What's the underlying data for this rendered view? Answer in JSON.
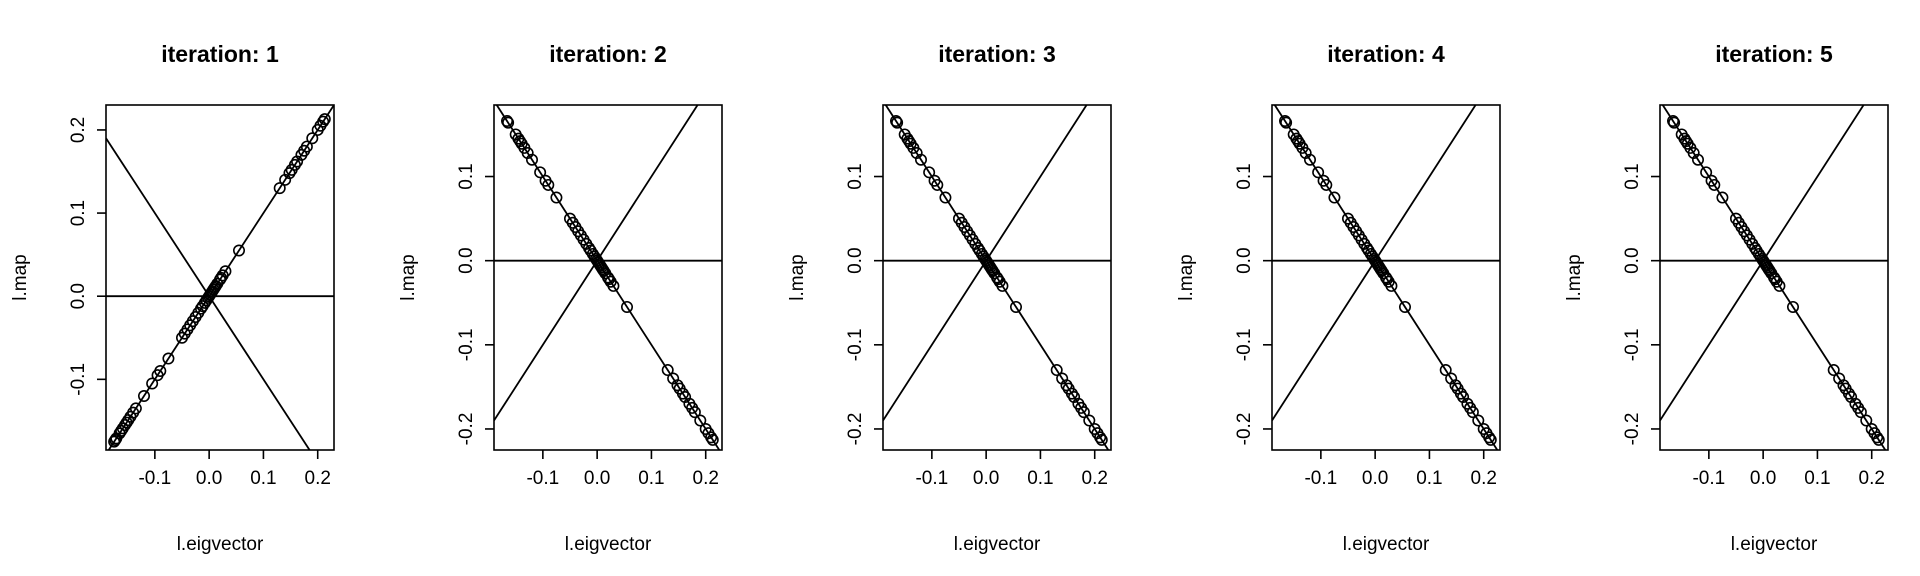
{
  "chart_data": [
    {
      "type": "scatter",
      "title": "iteration: 1",
      "xlabel": "l.eigvector",
      "ylabel": "l.map",
      "xlim": [
        -0.19,
        0.23
      ],
      "ylim": [
        -0.185,
        0.23
      ],
      "xticks": [
        {
          "v": -0.1,
          "label": "-0.1"
        },
        {
          "v": 0.0,
          "label": "0.0"
        },
        {
          "v": 0.1,
          "label": "0.1"
        },
        {
          "v": 0.2,
          "label": "0.2"
        }
      ],
      "yticks": [
        {
          "v": -0.1,
          "label": "-0.1"
        },
        {
          "v": 0.0,
          "label": "0.0"
        },
        {
          "v": 0.1,
          "label": "0.1"
        },
        {
          "v": 0.2,
          "label": "0.2"
        }
      ],
      "lines": [
        {
          "slope": 0,
          "intercept": 0
        },
        {
          "slope": 1,
          "intercept": 0
        },
        {
          "slope": -1,
          "intercept": 0
        }
      ],
      "points": {
        "sign": 1,
        "x": [
          -0.175,
          -0.173,
          -0.171,
          -0.165,
          -0.162,
          -0.159,
          -0.155,
          -0.152,
          -0.149,
          -0.145,
          -0.14,
          -0.135,
          -0.12,
          -0.105,
          -0.095,
          -0.09,
          -0.075,
          -0.05,
          -0.045,
          -0.04,
          -0.035,
          -0.03,
          -0.025,
          -0.02,
          -0.015,
          -0.012,
          -0.008,
          -0.005,
          -0.002,
          0.0,
          0.002,
          0.004,
          0.006,
          0.008,
          0.01,
          0.012,
          0.015,
          0.02,
          0.022,
          0.025,
          0.03,
          0.055,
          0.13,
          0.14,
          0.148,
          0.152,
          0.158,
          0.162,
          0.17,
          0.175,
          0.18,
          0.19,
          0.2,
          0.205,
          0.21,
          0.213
        ]
      }
    },
    {
      "type": "scatter",
      "title": "iteration: 2",
      "xlabel": "l.eigvector",
      "ylabel": "l.map",
      "xlim": [
        -0.19,
        0.23
      ],
      "ylim": [
        -0.225,
        0.185
      ],
      "xticks": [
        {
          "v": -0.1,
          "label": "-0.1"
        },
        {
          "v": 0.0,
          "label": "0.0"
        },
        {
          "v": 0.1,
          "label": "0.1"
        },
        {
          "v": 0.2,
          "label": "0.2"
        }
      ],
      "yticks": [
        {
          "v": -0.2,
          "label": "-0.2"
        },
        {
          "v": -0.1,
          "label": "-0.1"
        },
        {
          "v": 0.0,
          "label": "0.0"
        },
        {
          "v": 0.1,
          "label": "0.1"
        }
      ],
      "lines": [
        {
          "slope": 0,
          "intercept": 0
        },
        {
          "slope": 1,
          "intercept": 0
        },
        {
          "slope": -1,
          "intercept": 0
        }
      ],
      "points": {
        "sign": -1,
        "x": [
          -0.166,
          -0.164,
          -0.15,
          -0.145,
          -0.142,
          -0.139,
          -0.134,
          -0.128,
          -0.12,
          -0.105,
          -0.095,
          -0.09,
          -0.075,
          -0.05,
          -0.045,
          -0.04,
          -0.035,
          -0.03,
          -0.025,
          -0.02,
          -0.015,
          -0.012,
          -0.008,
          -0.005,
          -0.002,
          0.0,
          0.002,
          0.004,
          0.006,
          0.008,
          0.01,
          0.012,
          0.015,
          0.02,
          0.022,
          0.025,
          0.03,
          0.055,
          0.13,
          0.14,
          0.148,
          0.152,
          0.158,
          0.162,
          0.17,
          0.175,
          0.18,
          0.19,
          0.2,
          0.205,
          0.21,
          0.213
        ]
      }
    },
    {
      "type": "scatter",
      "title": "iteration: 3",
      "xlabel": "l.eigvector",
      "ylabel": "l.map",
      "xlim": [
        -0.19,
        0.23
      ],
      "ylim": [
        -0.225,
        0.185
      ],
      "xticks": [
        {
          "v": -0.1,
          "label": "-0.1"
        },
        {
          "v": 0.0,
          "label": "0.0"
        },
        {
          "v": 0.1,
          "label": "0.1"
        },
        {
          "v": 0.2,
          "label": "0.2"
        }
      ],
      "yticks": [
        {
          "v": -0.2,
          "label": "-0.2"
        },
        {
          "v": -0.1,
          "label": "-0.1"
        },
        {
          "v": 0.0,
          "label": "0.0"
        },
        {
          "v": 0.1,
          "label": "0.1"
        }
      ],
      "lines": [
        {
          "slope": 0,
          "intercept": 0
        },
        {
          "slope": 1,
          "intercept": 0
        },
        {
          "slope": -1,
          "intercept": 0
        }
      ],
      "points": {
        "sign": -1,
        "x": [
          -0.166,
          -0.164,
          -0.15,
          -0.145,
          -0.142,
          -0.139,
          -0.134,
          -0.128,
          -0.12,
          -0.105,
          -0.095,
          -0.09,
          -0.075,
          -0.05,
          -0.045,
          -0.04,
          -0.035,
          -0.03,
          -0.025,
          -0.02,
          -0.015,
          -0.012,
          -0.008,
          -0.005,
          -0.002,
          0.0,
          0.002,
          0.004,
          0.006,
          0.008,
          0.01,
          0.012,
          0.015,
          0.02,
          0.022,
          0.025,
          0.03,
          0.055,
          0.13,
          0.14,
          0.148,
          0.152,
          0.158,
          0.162,
          0.17,
          0.175,
          0.18,
          0.19,
          0.2,
          0.205,
          0.21,
          0.213
        ]
      }
    },
    {
      "type": "scatter",
      "title": "iteration: 4",
      "xlabel": "l.eigvector",
      "ylabel": "l.map",
      "xlim": [
        -0.19,
        0.23
      ],
      "ylim": [
        -0.225,
        0.185
      ],
      "xticks": [
        {
          "v": -0.1,
          "label": "-0.1"
        },
        {
          "v": 0.0,
          "label": "0.0"
        },
        {
          "v": 0.1,
          "label": "0.1"
        },
        {
          "v": 0.2,
          "label": "0.2"
        }
      ],
      "yticks": [
        {
          "v": -0.2,
          "label": "-0.2"
        },
        {
          "v": -0.1,
          "label": "-0.1"
        },
        {
          "v": 0.0,
          "label": "0.0"
        },
        {
          "v": 0.1,
          "label": "0.1"
        }
      ],
      "lines": [
        {
          "slope": 0,
          "intercept": 0
        },
        {
          "slope": 1,
          "intercept": 0
        },
        {
          "slope": -1,
          "intercept": 0
        }
      ],
      "points": {
        "sign": -1,
        "x": [
          -0.166,
          -0.164,
          -0.15,
          -0.145,
          -0.142,
          -0.139,
          -0.134,
          -0.128,
          -0.12,
          -0.105,
          -0.095,
          -0.09,
          -0.075,
          -0.05,
          -0.045,
          -0.04,
          -0.035,
          -0.03,
          -0.025,
          -0.02,
          -0.015,
          -0.012,
          -0.008,
          -0.005,
          -0.002,
          0.0,
          0.002,
          0.004,
          0.006,
          0.008,
          0.01,
          0.012,
          0.015,
          0.02,
          0.022,
          0.025,
          0.03,
          0.055,
          0.13,
          0.14,
          0.148,
          0.152,
          0.158,
          0.162,
          0.17,
          0.175,
          0.18,
          0.19,
          0.2,
          0.205,
          0.21,
          0.213
        ]
      }
    },
    {
      "type": "scatter",
      "title": "iteration: 5",
      "xlabel": "l.eigvector",
      "ylabel": "l.map",
      "xlim": [
        -0.19,
        0.23
      ],
      "ylim": [
        -0.225,
        0.185
      ],
      "xticks": [
        {
          "v": -0.1,
          "label": "-0.1"
        },
        {
          "v": 0.0,
          "label": "0.0"
        },
        {
          "v": 0.1,
          "label": "0.1"
        },
        {
          "v": 0.2,
          "label": "0.2"
        }
      ],
      "yticks": [
        {
          "v": -0.2,
          "label": "-0.2"
        },
        {
          "v": -0.1,
          "label": "-0.1"
        },
        {
          "v": 0.0,
          "label": "0.0"
        },
        {
          "v": 0.1,
          "label": "0.1"
        }
      ],
      "lines": [
        {
          "slope": 0,
          "intercept": 0
        },
        {
          "slope": 1,
          "intercept": 0
        },
        {
          "slope": -1,
          "intercept": 0
        }
      ],
      "points": {
        "sign": -1,
        "x": [
          -0.166,
          -0.164,
          -0.15,
          -0.145,
          -0.142,
          -0.139,
          -0.134,
          -0.128,
          -0.12,
          -0.105,
          -0.095,
          -0.09,
          -0.075,
          -0.05,
          -0.045,
          -0.04,
          -0.035,
          -0.03,
          -0.025,
          -0.02,
          -0.015,
          -0.012,
          -0.008,
          -0.005,
          -0.002,
          0.0,
          0.002,
          0.004,
          0.006,
          0.008,
          0.01,
          0.012,
          0.015,
          0.02,
          0.022,
          0.025,
          0.03,
          0.055,
          0.13,
          0.14,
          0.148,
          0.152,
          0.158,
          0.162,
          0.17,
          0.175,
          0.18,
          0.19,
          0.2,
          0.205,
          0.21,
          0.213
        ]
      }
    }
  ]
}
